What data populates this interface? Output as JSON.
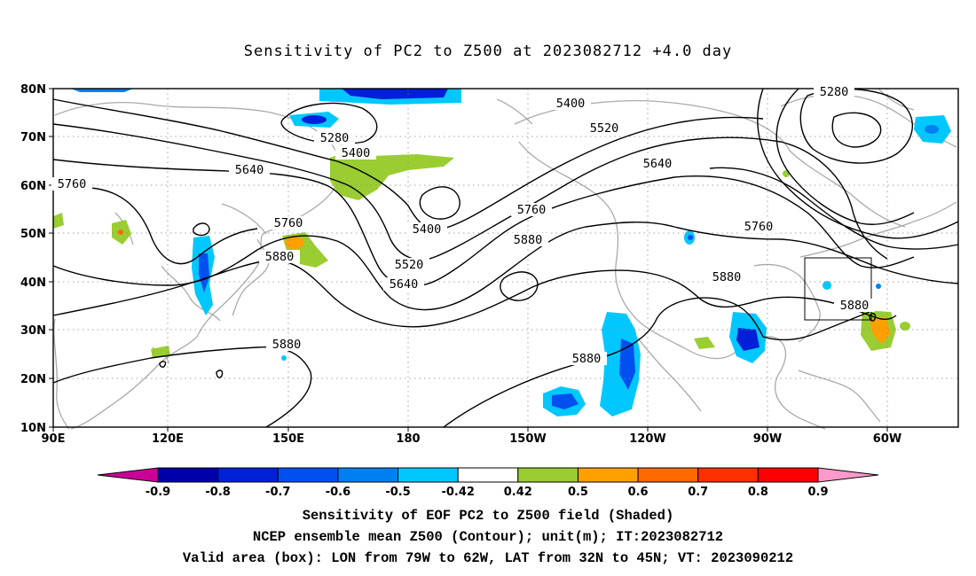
{
  "title": "Sensitivity of PC2 to Z500 at 2023082712 +4.0 day",
  "captions": [
    "Sensitivity of EOF PC2 to Z500 field (Shaded)",
    "NCEP ensemble mean Z500 (Contour); unit(m); IT:2023082712",
    "Valid area (box): LON from 79W to 62W, LAT from 32N to 45N; VT: 2023090212"
  ],
  "map": {
    "lat_range": [
      10,
      80
    ],
    "lon_range_degE": [
      90,
      327
    ],
    "lat_ticks": [
      "80N",
      "70N",
      "60N",
      "50N",
      "40N",
      "30N",
      "20N",
      "10N"
    ],
    "lon_ticks": [
      "90E",
      "120E",
      "150E",
      "180",
      "150W",
      "120W",
      "90W",
      "60W"
    ],
    "grid": "dotted",
    "valid_box": {
      "lon": [
        "79W",
        "62W"
      ],
      "lat": [
        "32N",
        "45N"
      ]
    },
    "contour_labels": [
      "5280",
      "5280",
      "5400",
      "5400",
      "5400",
      "5520",
      "5520",
      "5640",
      "5640",
      "5640",
      "5760",
      "5760",
      "5760",
      "5760",
      "5880",
      "5880",
      "5880",
      "5880",
      "5880",
      "5880"
    ]
  },
  "colorbar": {
    "labels": [
      "-0.9",
      "-0.8",
      "-0.7",
      "-0.6",
      "-0.5",
      "-0.42",
      "0.42",
      "0.5",
      "0.6",
      "0.7",
      "0.8",
      "0.9"
    ],
    "colors": [
      "#cc0099",
      "#0000a8",
      "#0020d8",
      "#0050f0",
      "#0080f0",
      "#00c8ff",
      "#ffffff",
      "#9acd32",
      "#ffa000",
      "#ff6a00",
      "#ff3000",
      "#ff0000",
      "#ff99cc"
    ]
  }
}
